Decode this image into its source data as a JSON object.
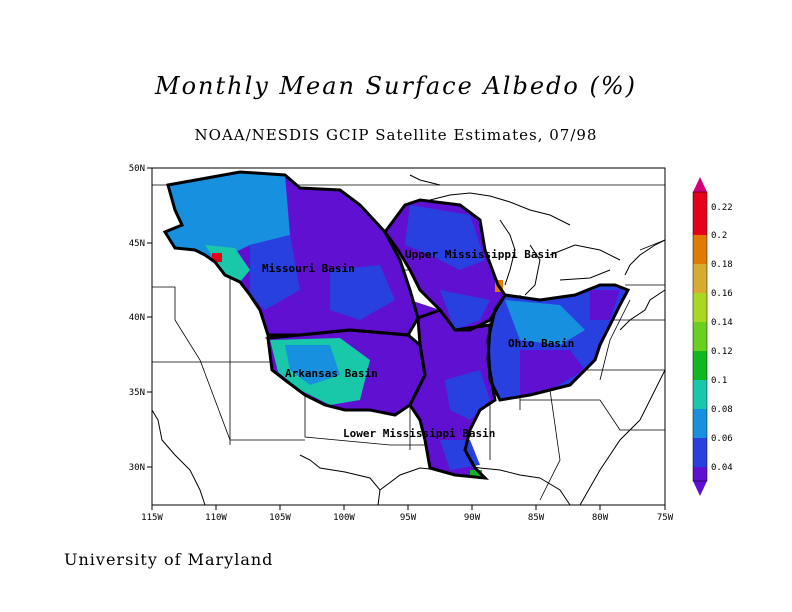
{
  "title": "Monthly Mean Surface Albedo (%)",
  "subtitle": "NOAA/NESDIS GCIP Satellite Estimates, 07/98",
  "credit": "University of Maryland",
  "map": {
    "x_ticks": [
      "115W",
      "110W",
      "105W",
      "100W",
      "95W",
      "90W",
      "85W",
      "80W",
      "75W"
    ],
    "y_ticks": [
      "30N",
      "35N",
      "40N",
      "45N",
      "50N"
    ],
    "basins": [
      {
        "name": "Missouri Basin"
      },
      {
        "name": "Upper Mississippi Basin"
      },
      {
        "name": "Ohio Basin"
      },
      {
        "name": "Arkansas Basin"
      },
      {
        "name": "Lower Mississippi Basin"
      }
    ]
  },
  "colorbar": {
    "labels": [
      "0.22",
      "0.2",
      "0.18",
      "0.16",
      "0.14",
      "0.12",
      "0.1",
      "0.08",
      "0.06",
      "0.04"
    ],
    "colors": [
      "#d4007a",
      "#e8001a",
      "#e07a00",
      "#d8aa30",
      "#a8d820",
      "#6ad020",
      "#10b820",
      "#18c8a8",
      "#1890e0",
      "#2840e0",
      "#6010d0"
    ]
  }
}
